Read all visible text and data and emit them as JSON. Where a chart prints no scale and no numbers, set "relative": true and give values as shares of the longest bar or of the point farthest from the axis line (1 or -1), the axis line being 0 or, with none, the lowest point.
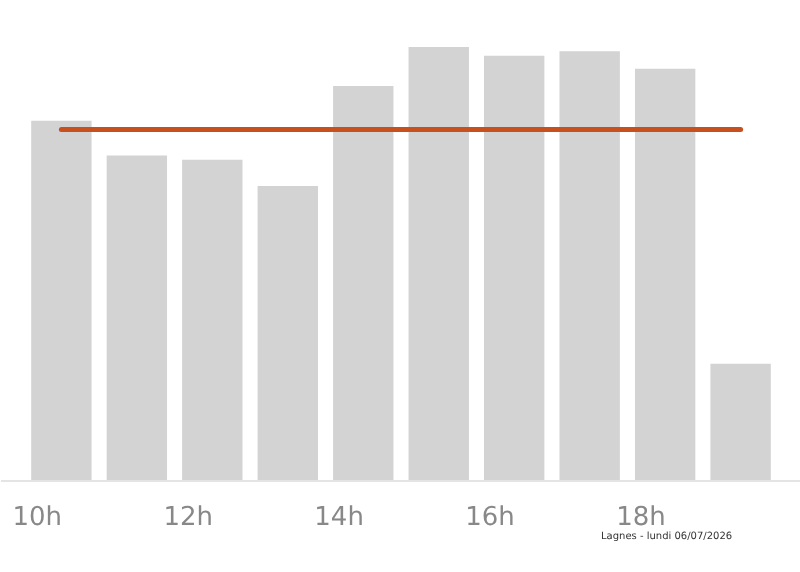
{
  "chart_data": {
    "type": "bar",
    "relative": true,
    "x": [
      10.32,
      11.32,
      12.32,
      13.32,
      14.32,
      15.32,
      16.32,
      17.32,
      18.32,
      19.32
    ],
    "values": [
      0.83,
      0.75,
      0.74,
      0.68,
      0.91,
      1,
      0.98,
      0.99,
      0.95,
      0.27
    ],
    "color": "#d3d3d3",
    "xticks": [
      {
        "value": 10,
        "label": "10h"
      },
      {
        "value": 12,
        "label": "12h"
      },
      {
        "value": 14,
        "label": "14h"
      },
      {
        "value": 16,
        "label": "16h"
      },
      {
        "value": 18,
        "label": "18h"
      }
    ],
    "xlim": [
      9.52,
      20.12
    ],
    "ref_lines": [
      {
        "axis": "y",
        "value": 0.81,
        "label": null,
        "color": "#c8501e"
      }
    ],
    "annotations": [
      "Lagnes - lundi 06/07/2026"
    ],
    "grid": false
  }
}
